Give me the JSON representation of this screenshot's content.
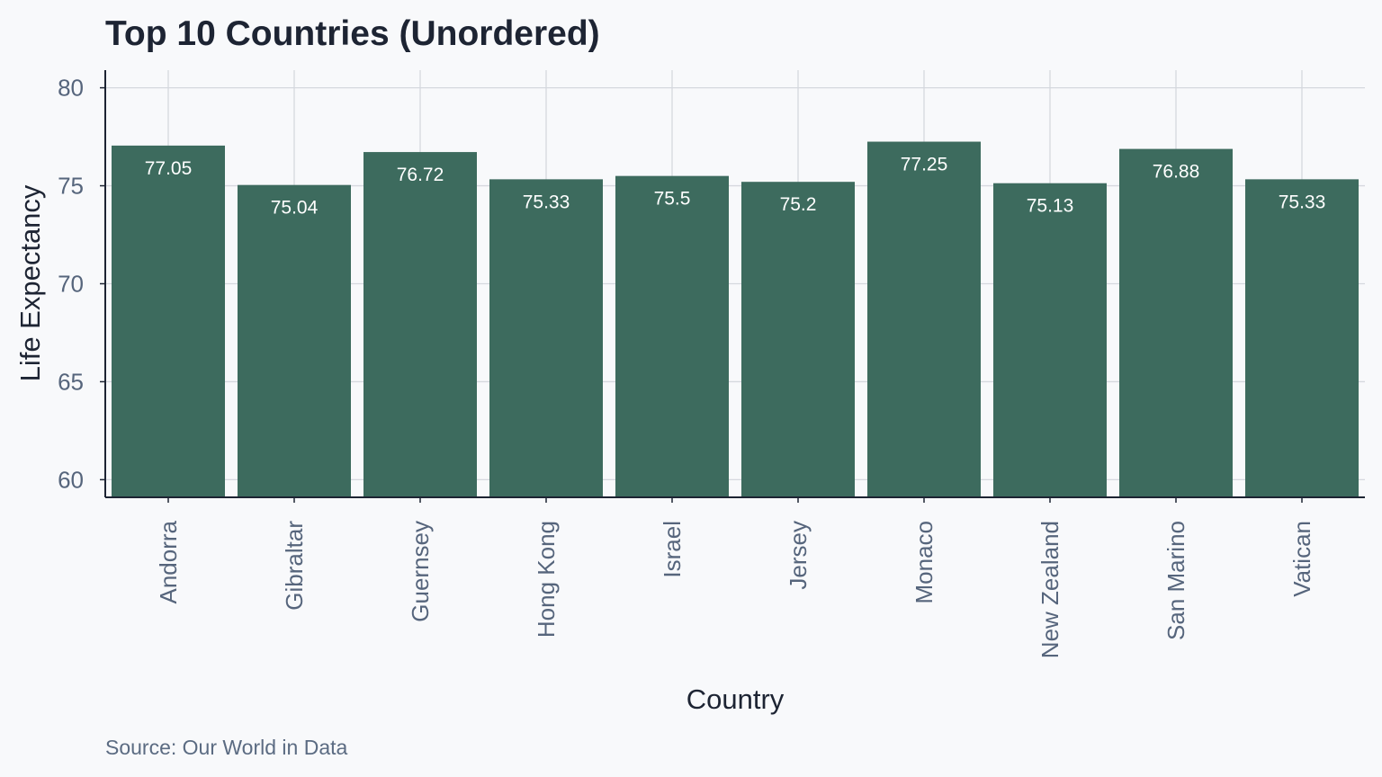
{
  "chart_data": {
    "type": "bar",
    "title": "Top 10 Countries (Unordered)",
    "xlabel": "Country",
    "ylabel": "Life Expectancy",
    "caption": "Source: Our World in Data",
    "categories": [
      "Andorra",
      "Gibraltar",
      "Guernsey",
      "Hong Kong",
      "Israel",
      "Jersey",
      "Monaco",
      "New Zealand",
      "San Marino",
      "Vatican"
    ],
    "values": [
      77.05,
      75.04,
      76.72,
      75.33,
      75.5,
      75.2,
      77.25,
      75.13,
      76.88,
      75.33
    ],
    "data_labels": [
      "77.05",
      "75.04",
      "76.72",
      "75.33",
      "75.5",
      "75.2",
      "77.25",
      "75.13",
      "76.88",
      "75.33"
    ],
    "ylim": [
      59.1,
      80.9
    ],
    "yticks": [
      60,
      65,
      70,
      75,
      80
    ],
    "grid": true,
    "colors": {
      "bar": "#3d6b5e",
      "background": "#f8f9fb"
    }
  }
}
